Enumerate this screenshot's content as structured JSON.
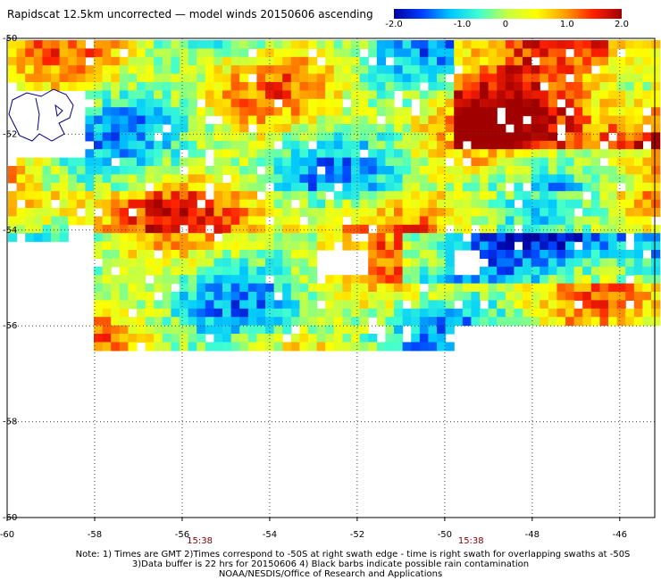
{
  "title": "Rapidscat 12.5km uncorrected — model winds 20150606 ascending",
  "colorbar": {
    "labels": [
      "-2.0",
      "-1.0",
      "0",
      "1.0",
      "2.0"
    ],
    "min": -2.0,
    "max": 2.0,
    "colors": [
      "#0000a0",
      "#0040ff",
      "#00c8ff",
      "#40ffd0",
      "#c8ff40",
      "#ffff00",
      "#ffa000",
      "#ff2000",
      "#a00000"
    ]
  },
  "map": {
    "lon_ticks": [
      "-60",
      "-58",
      "-56",
      "-54",
      "-52",
      "-50",
      "-48",
      "-46"
    ],
    "lat_ticks": [
      "-50",
      "-52",
      "-54",
      "-56",
      "-58",
      "-60"
    ],
    "time_labels": [
      "15:38",
      "15:38"
    ],
    "time_label_lons": [
      -55.6,
      -49.4
    ],
    "lon_range": [
      -60,
      -45.2
    ],
    "lat_range": [
      -50,
      -60
    ],
    "grid": true,
    "coastline_color": "#000080",
    "time_label_color": "#800000"
  },
  "notes": {
    "line1": "Note: 1) Times are GMT  2)Times correspond to -50S at right swath edge - time is right swath for overlapping swaths at -50S",
    "line2": "3)Data buffer is 22 hrs for 20150606  4) Black barbs indicate possible rain contamination",
    "line3": "NOAA/NESDIS/Office of Research and Applications"
  }
}
